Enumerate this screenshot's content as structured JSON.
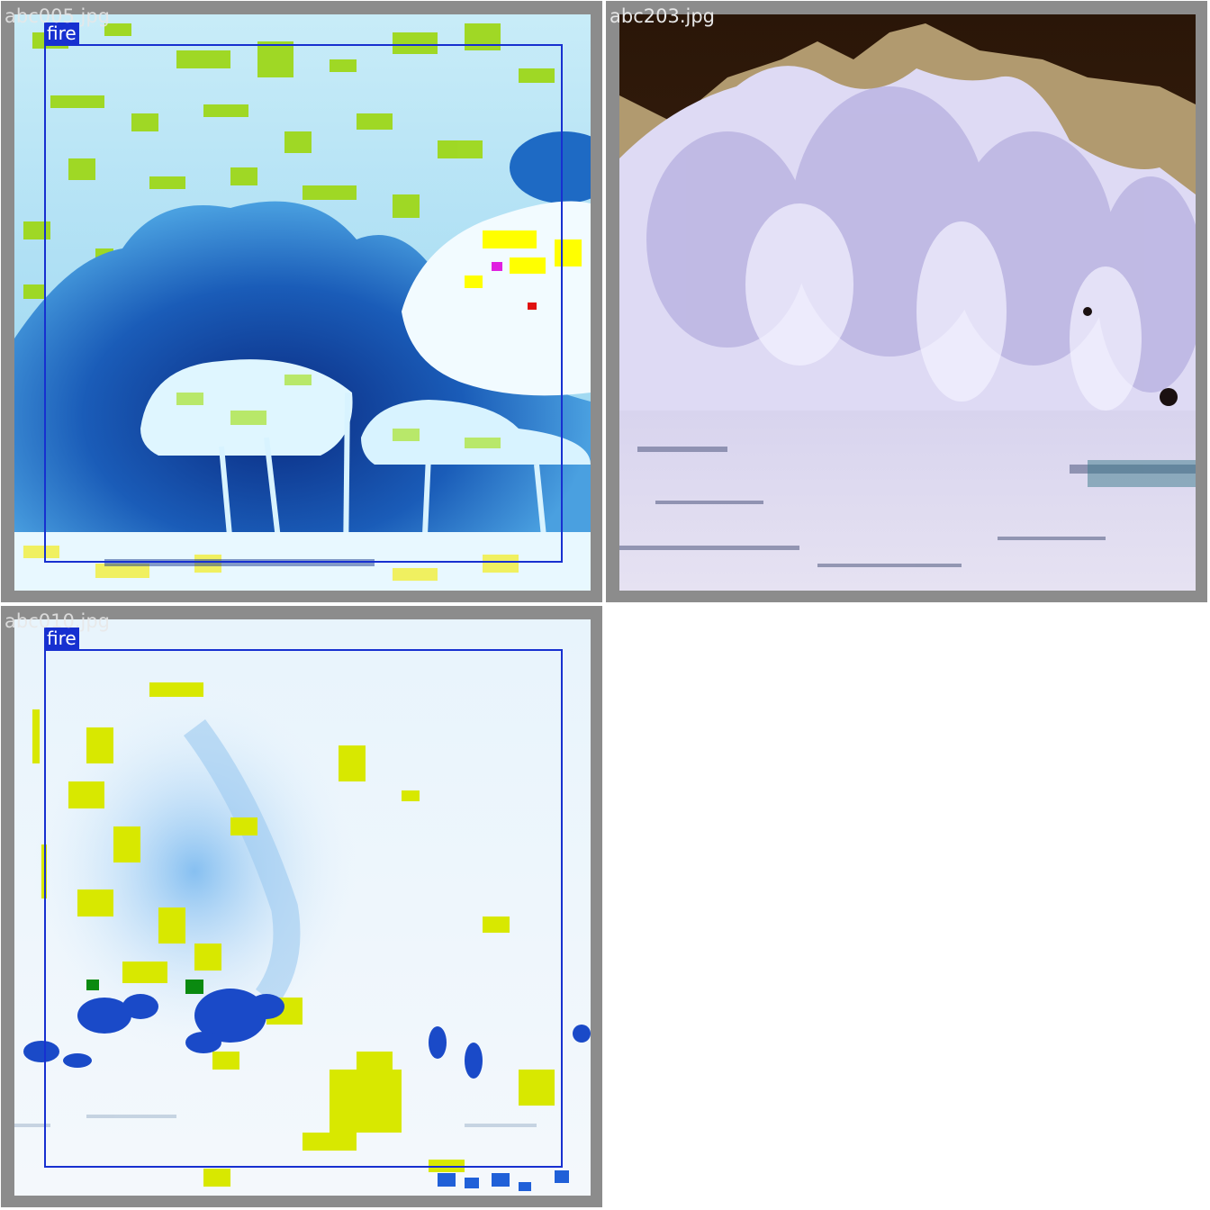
{
  "tiles": [
    {
      "filename": "abc005.jpg",
      "detections": [
        {
          "label": "fire"
        }
      ]
    },
    {
      "filename": "abc203.jpg",
      "detections": []
    },
    {
      "filename": "abc010.jpg",
      "detections": [
        {
          "label": "fire"
        }
      ]
    }
  ],
  "colors": {
    "tile_border": "#8c8c8c",
    "bbox": "#1730d0",
    "label_text": "#ffffff",
    "filename_text": "#e6e6e6"
  }
}
